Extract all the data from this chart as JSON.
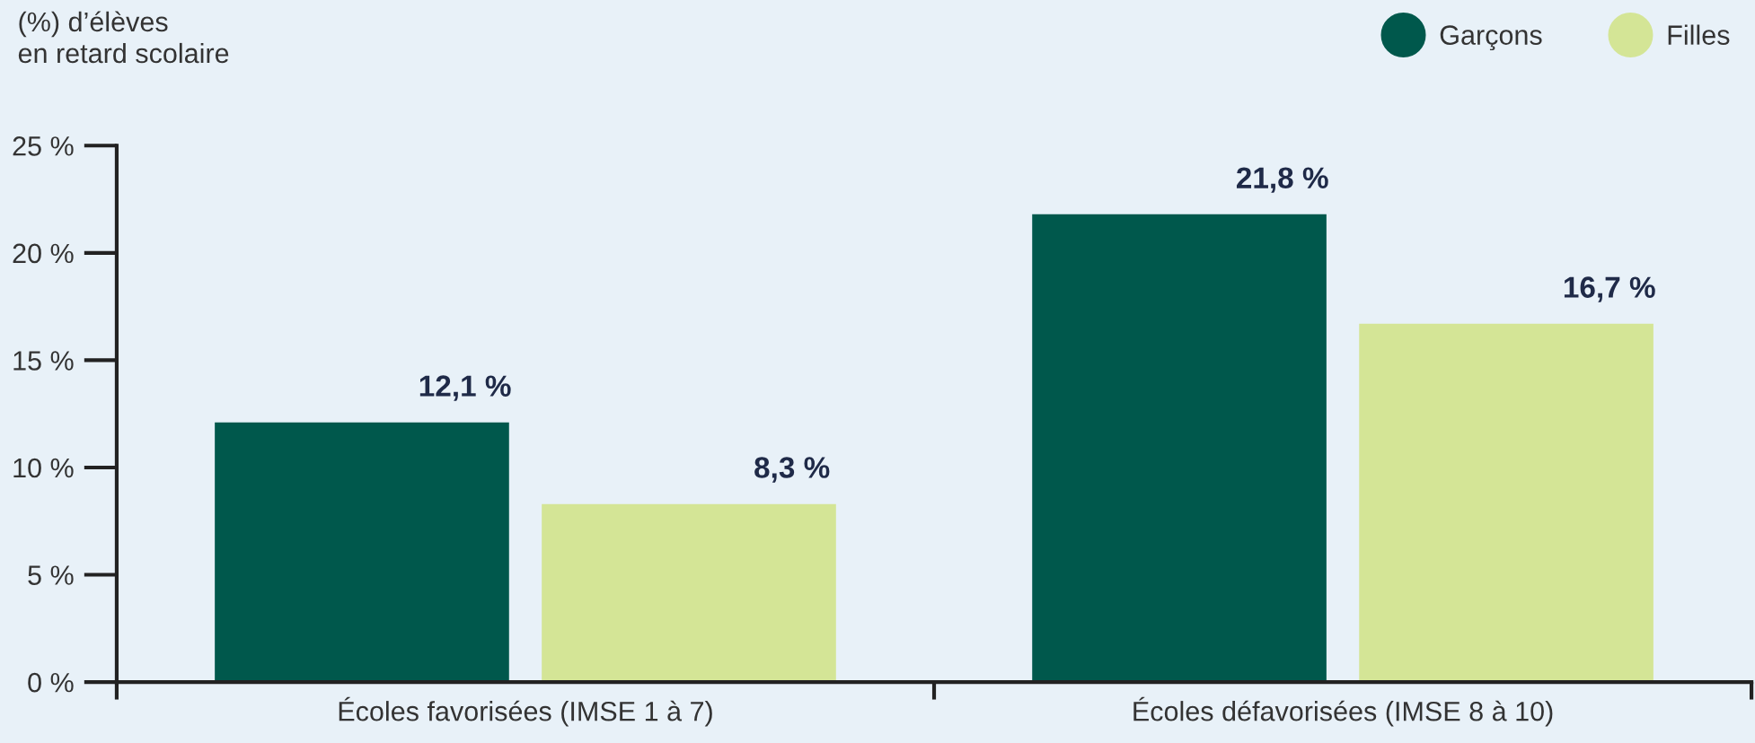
{
  "chart_data": {
    "type": "bar",
    "ylabel": "(%) d’élèves\nen retard scolaire",
    "categories": [
      "Écoles favorisées (IMSE 1 à 7)",
      "Écoles défavorisées (IMSE 8 à 10)"
    ],
    "series": [
      {
        "name": "Garçons",
        "color": "#00584c",
        "values": [
          12.1,
          21.8
        ],
        "value_labels": [
          "12,1 %",
          "21,8 %"
        ]
      },
      {
        "name": "Filles",
        "color": "#d4e596",
        "values": [
          8.3,
          16.7
        ],
        "value_labels": [
          "8,3 %",
          "16,7 %"
        ]
      }
    ],
    "ylim": [
      0,
      25
    ],
    "yticks": [
      {
        "value": 0,
        "label": "0 %"
      },
      {
        "value": 5,
        "label": "5 %"
      },
      {
        "value": 10,
        "label": "10 %"
      },
      {
        "value": 15,
        "label": "15 %"
      },
      {
        "value": 20,
        "label": "20 %"
      },
      {
        "value": 25,
        "label": "25 %"
      }
    ],
    "grid": false,
    "legend": "top right"
  }
}
